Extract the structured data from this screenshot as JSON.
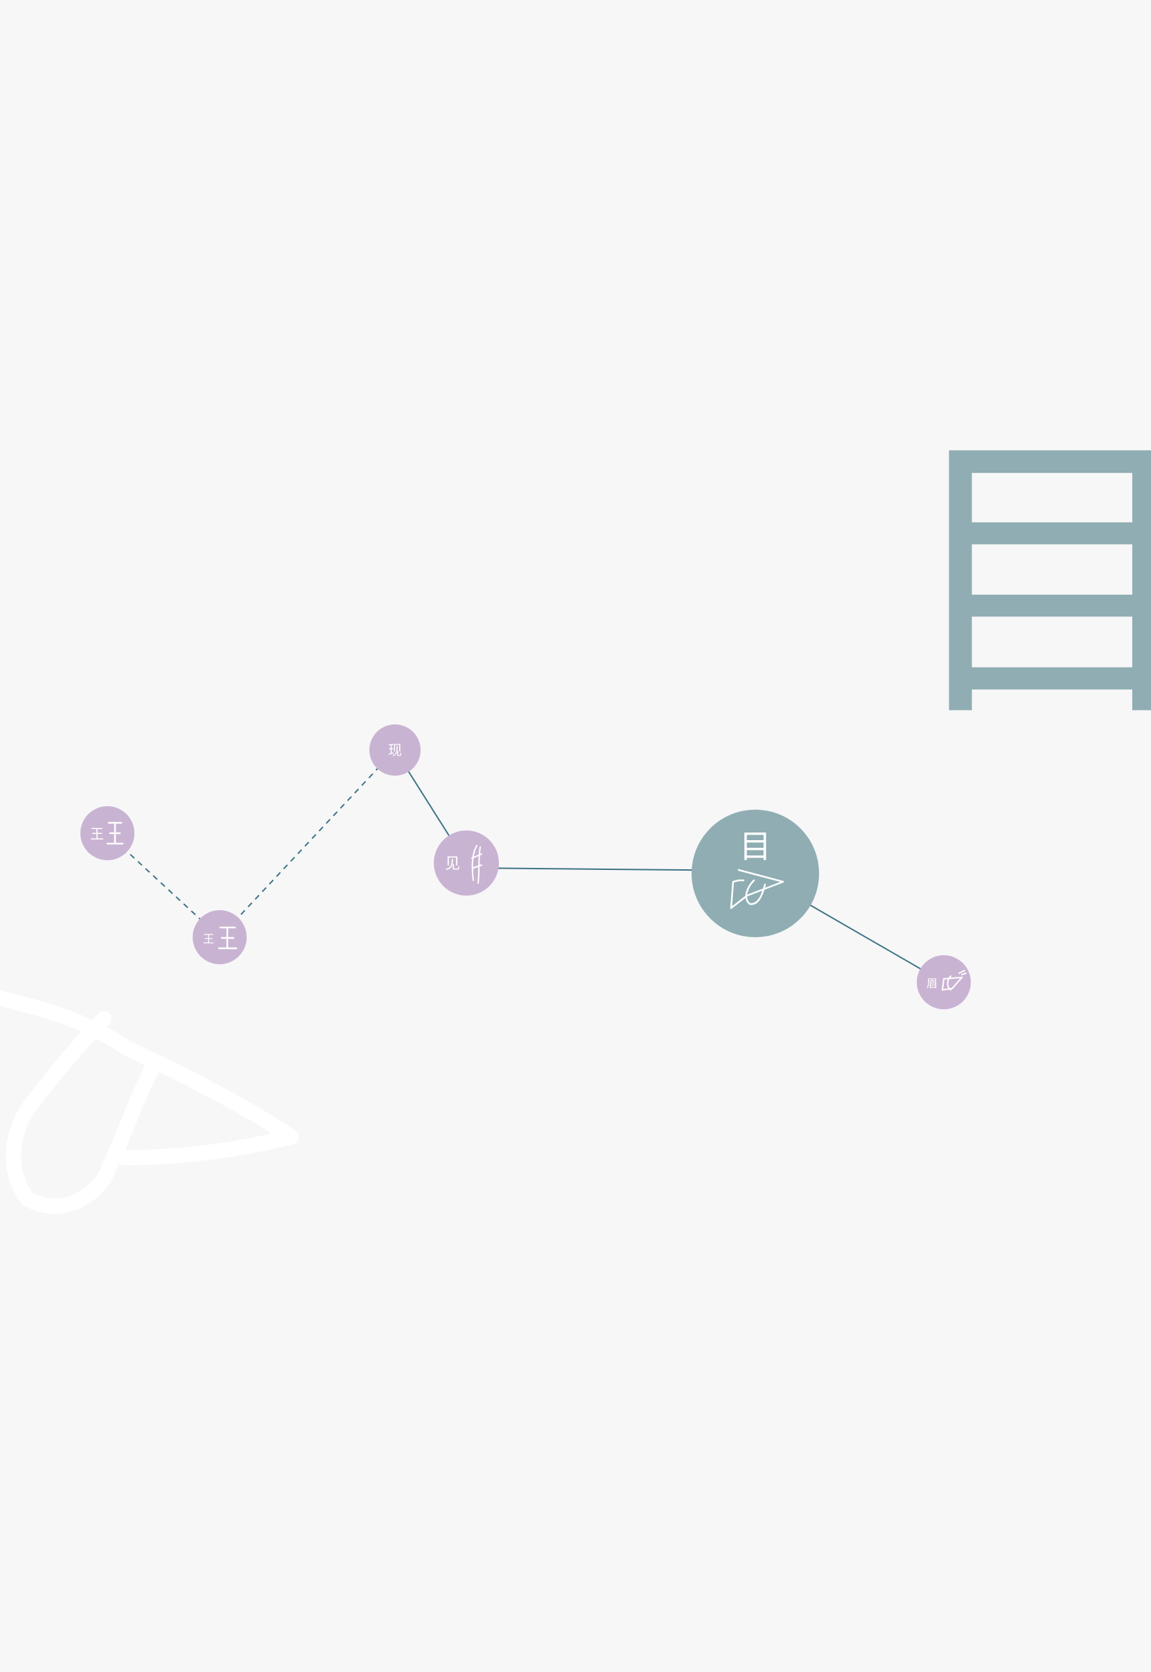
{
  "title_character": "目",
  "colors": {
    "background": "#f7f7f7",
    "accent_teal": "#8fadb3",
    "node_purple": "#c9b3d2",
    "edge": "#3e7485",
    "node_text": "#ffffff",
    "brush": "#ffffff"
  },
  "nodes": [
    {
      "id": "wang1",
      "modern": "王",
      "ancient_icon": "oracle-wang-glyph-icon"
    },
    {
      "id": "wang2",
      "modern": "王",
      "ancient_icon": "oracle-wang-glyph-icon"
    },
    {
      "id": "xian",
      "modern": "现",
      "ancient_icon": ""
    },
    {
      "id": "jian",
      "modern": "见",
      "ancient_icon": "oracle-jian-glyph-icon"
    },
    {
      "id": "mu",
      "modern": "目",
      "ancient_icon": "oracle-eye-glyph-icon",
      "center": true
    },
    {
      "id": "mei",
      "modern": "眉",
      "ancient_icon": "oracle-mei-glyph-icon"
    }
  ],
  "edges": [
    {
      "from": "wang1",
      "to": "wang2",
      "style": "dashed"
    },
    {
      "from": "wang2",
      "to": "xian",
      "style": "dashed"
    },
    {
      "from": "xian",
      "to": "jian",
      "style": "solid"
    },
    {
      "from": "jian",
      "to": "mu",
      "style": "solid"
    },
    {
      "from": "mu",
      "to": "mei",
      "style": "solid"
    }
  ]
}
